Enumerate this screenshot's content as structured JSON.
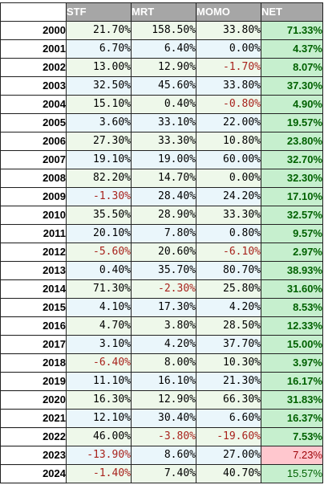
{
  "headers": {
    "stf": "STF",
    "mrt": "MRT",
    "momo": "MOMO",
    "net": "NET"
  },
  "rows": [
    {
      "year": "2000",
      "stf": "21.70%",
      "mrt": "158.50%",
      "momo": "33.80%",
      "net": "71.33%"
    },
    {
      "year": "2001",
      "stf": "6.70%",
      "mrt": "6.40%",
      "momo": "0.00%",
      "net": "4.37%"
    },
    {
      "year": "2002",
      "stf": "13.00%",
      "mrt": "12.90%",
      "momo": "-1.70%",
      "net": "8.07%"
    },
    {
      "year": "2003",
      "stf": "32.50%",
      "mrt": "45.60%",
      "momo": "33.80%",
      "net": "37.30%"
    },
    {
      "year": "2004",
      "stf": "15.10%",
      "mrt": "0.40%",
      "momo": "-0.80%",
      "net": "4.90%"
    },
    {
      "year": "2005",
      "stf": "3.60%",
      "mrt": "33.10%",
      "momo": "22.00%",
      "net": "19.57%"
    },
    {
      "year": "2006",
      "stf": "27.30%",
      "mrt": "33.30%",
      "momo": "10.80%",
      "net": "23.80%"
    },
    {
      "year": "2007",
      "stf": "19.10%",
      "mrt": "19.00%",
      "momo": "60.00%",
      "net": "32.70%"
    },
    {
      "year": "2008",
      "stf": "82.20%",
      "mrt": "14.70%",
      "momo": "0.00%",
      "net": "32.30%"
    },
    {
      "year": "2009",
      "stf": "-1.30%",
      "mrt": "28.40%",
      "momo": "24.20%",
      "net": "17.10%"
    },
    {
      "year": "2010",
      "stf": "35.50%",
      "mrt": "28.90%",
      "momo": "33.30%",
      "net": "32.57%"
    },
    {
      "year": "2011",
      "stf": "20.10%",
      "mrt": "7.80%",
      "momo": "0.80%",
      "net": "9.57%"
    },
    {
      "year": "2012",
      "stf": "-5.60%",
      "mrt": "20.60%",
      "momo": "-6.10%",
      "net": "2.97%"
    },
    {
      "year": "2013",
      "stf": "0.40%",
      "mrt": "35.70%",
      "momo": "80.70%",
      "net": "38.93%"
    },
    {
      "year": "2014",
      "stf": "71.30%",
      "mrt": "-2.30%",
      "momo": "25.80%",
      "net": "31.60%"
    },
    {
      "year": "2015",
      "stf": "4.10%",
      "mrt": "17.30%",
      "momo": "4.20%",
      "net": "8.53%"
    },
    {
      "year": "2016",
      "stf": "4.70%",
      "mrt": "3.80%",
      "momo": "28.50%",
      "net": "12.33%"
    },
    {
      "year": "2017",
      "stf": "3.10%",
      "mrt": "4.20%",
      "momo": "37.70%",
      "net": "15.00%"
    },
    {
      "year": "2018",
      "stf": "-6.40%",
      "mrt": "8.00%",
      "momo": "10.30%",
      "net": "3.97%"
    },
    {
      "year": "2019",
      "stf": "11.10%",
      "mrt": "16.10%",
      "momo": "21.30%",
      "net": "16.17%"
    },
    {
      "year": "2020",
      "stf": "16.30%",
      "mrt": "12.90%",
      "momo": "66.30%",
      "net": "31.83%"
    },
    {
      "year": "2021",
      "stf": "12.10%",
      "mrt": "30.40%",
      "momo": "6.60%",
      "net": "16.37%"
    },
    {
      "year": "2022",
      "stf": "46.00%",
      "mrt": "-3.80%",
      "momo": "-19.60%",
      "net": "7.53%"
    },
    {
      "year": "2023",
      "stf": "-13.90%",
      "mrt": "8.60%",
      "momo": "27.00%",
      "net": "7.23%"
    },
    {
      "year": "2024",
      "stf": "-1.40%",
      "mrt": "7.40%",
      "momo": "40.70%",
      "net": "15.57%"
    }
  ],
  "net_styles": {
    "bad_rows": [
      "2023"
    ],
    "plain_rows": [
      "2024"
    ]
  },
  "colors": {
    "header_bg": "#a6a6a6",
    "header_text": "#ffffff",
    "negative_text": "#a8221c",
    "net_positive_bg": "#c6efce",
    "net_positive_text": "#006100",
    "net_negative_bg": "#ffc7ce",
    "net_negative_text": "#9c0006",
    "row_band_green": "#eef8ea",
    "row_band_blue": "#eaf6fb"
  }
}
